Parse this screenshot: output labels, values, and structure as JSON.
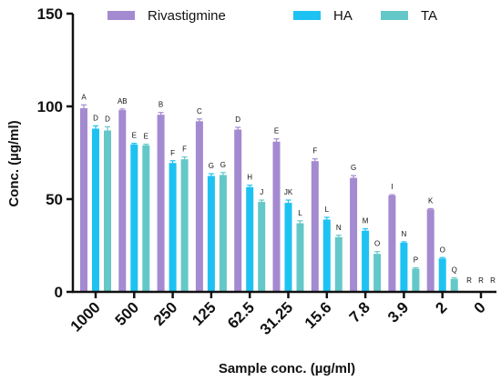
{
  "chart_data": {
    "type": "bar",
    "title": "",
    "xlabel": "Sample conc. (µg/ml)",
    "ylabel": "Conc. (µg/ml)",
    "ylim": [
      0,
      150
    ],
    "yticks": [
      0,
      50,
      100,
      150
    ],
    "categories": [
      "1000",
      "500",
      "250",
      "125",
      "62.5",
      "31.25",
      "15.6",
      "7.8",
      "3.9",
      "2",
      "0"
    ],
    "legend_position": "top",
    "series": [
      {
        "name": "Rivastigmine",
        "color": "#a48ad0",
        "values": [
          99,
          98,
          95.5,
          92,
          87.5,
          81,
          70.5,
          61.5,
          52,
          44.5,
          0
        ],
        "errors": [
          1.8,
          0.6,
          1.2,
          1.2,
          1.2,
          1.5,
          1.2,
          1.2,
          0.4,
          0.4,
          0
        ],
        "letters": [
          "A",
          "AB",
          "B",
          "C",
          "D",
          "E",
          "F",
          "G",
          "I",
          "K",
          "R"
        ]
      },
      {
        "name": "HA",
        "color": "#1ec2f2",
        "values": [
          88,
          79.5,
          69.5,
          62.5,
          56.5,
          48,
          39,
          33,
          26.5,
          18,
          0
        ],
        "errors": [
          1.5,
          0.6,
          1.2,
          1.2,
          1,
          1.5,
          1.2,
          1,
          0.5,
          0.5,
          0
        ],
        "letters": [
          "D",
          "E",
          "F",
          "G",
          "H",
          "JK",
          "L",
          "M",
          "N",
          "O",
          "R"
        ]
      },
      {
        "name": "TA",
        "color": "#64c8c8",
        "values": [
          87,
          79,
          71.5,
          63,
          48.5,
          37,
          29.5,
          20.5,
          12.5,
          7,
          0
        ],
        "errors": [
          2,
          0.6,
          1.2,
          1.3,
          1,
          1.3,
          1,
          1.2,
          0.5,
          0.6,
          0
        ],
        "letters": [
          "D",
          "E",
          "F",
          "G",
          "J",
          "L",
          "N",
          "O",
          "P",
          "Q",
          "R"
        ]
      }
    ],
    "grid": false
  }
}
